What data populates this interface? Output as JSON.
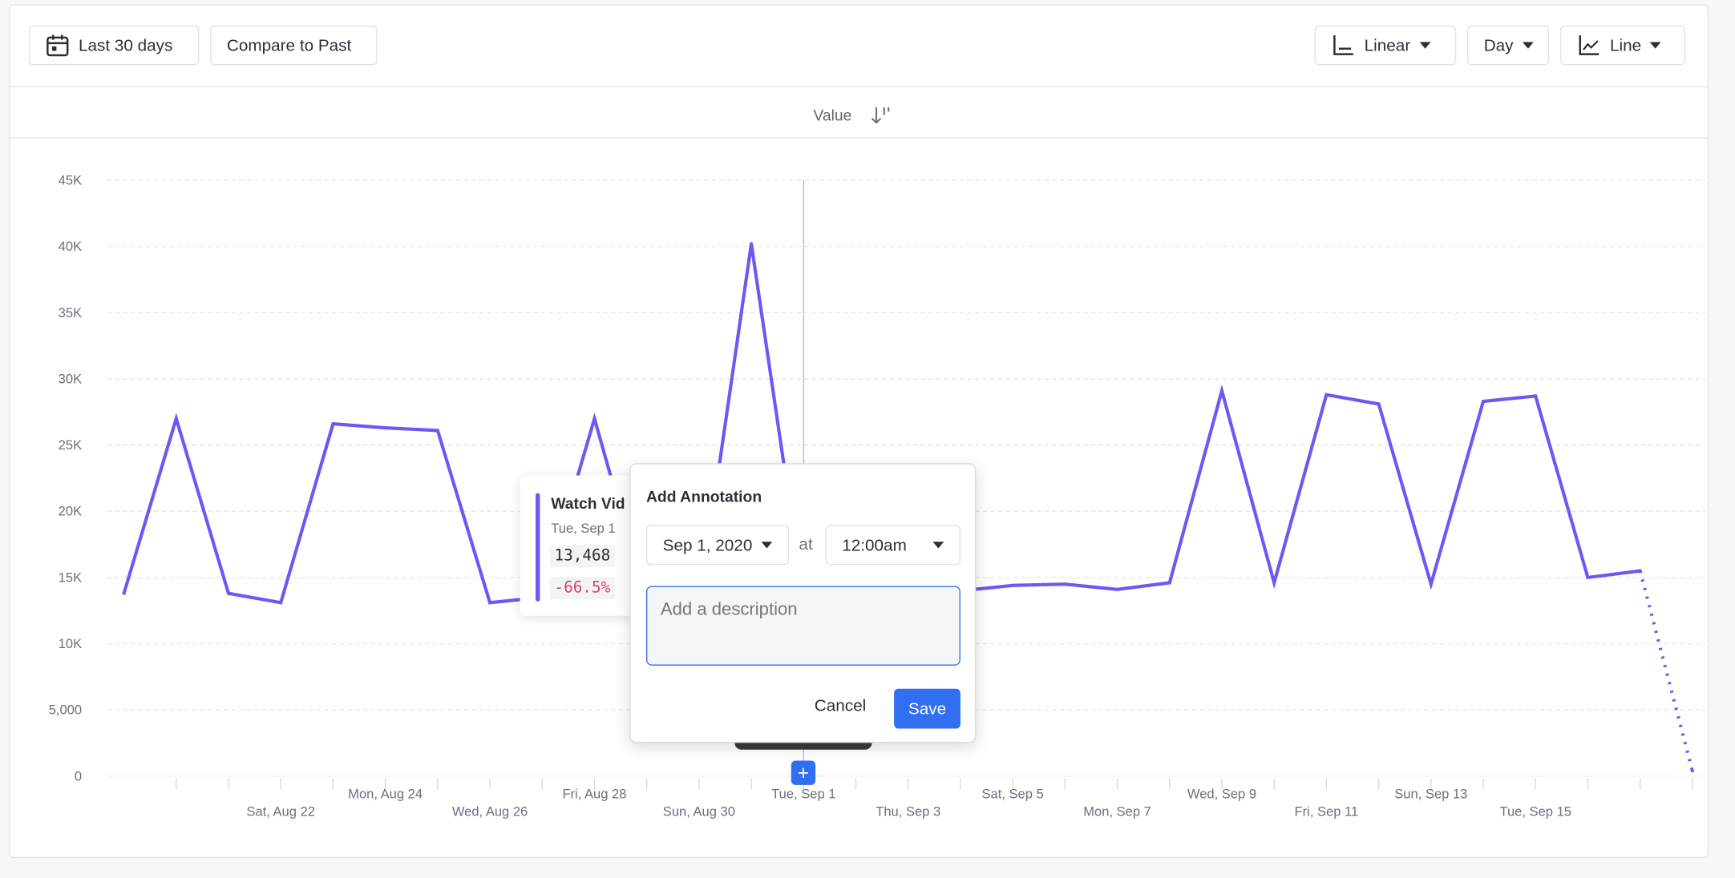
{
  "toolbar": {
    "date_range_label": "Last 30 days",
    "compare_label": "Compare to Past",
    "scale_label": "Linear",
    "interval_label": "Day",
    "chart_type_label": "Line"
  },
  "column_header": {
    "label": "Value"
  },
  "tooltip": {
    "title": "Watch Vid",
    "date": "Tue, Sep 1",
    "value": "13,468",
    "change": "-66.5%"
  },
  "annotation": {
    "title": "Add Annotation",
    "date": "Sep 1, 2020",
    "at_label": "at",
    "time": "12:00am",
    "description_placeholder": "Add a description",
    "cancel_label": "Cancel",
    "save_label": "Save",
    "add_icon": "plus-icon"
  },
  "colors": {
    "series": "#7155f5",
    "accent": "#306ef2",
    "negative": "#d8456b"
  },
  "chart_data": {
    "type": "line",
    "ylim": [
      0,
      45000
    ],
    "y_ticks": [
      "0",
      "5,000",
      "10K",
      "15K",
      "20K",
      "25K",
      "30K",
      "35K",
      "40K",
      "45K"
    ],
    "grid": true,
    "x": [
      "Aug 19",
      "Aug 20",
      "Aug 21",
      "Aug 22",
      "Aug 23",
      "Aug 24",
      "Aug 25",
      "Aug 26",
      "Aug 27",
      "Aug 28",
      "Aug 29",
      "Aug 30",
      "Aug 31",
      "Sep 1",
      "Sep 2",
      "Sep 3",
      "Sep 4",
      "Sep 5",
      "Sep 6",
      "Sep 7",
      "Sep 8",
      "Sep 9",
      "Sep 10",
      "Sep 11",
      "Sep 12",
      "Sep 13",
      "Sep 14",
      "Sep 15",
      "Sep 16",
      "Sep 17",
      "Sep 18"
    ],
    "values": [
      13800,
      27000,
      13800,
      13100,
      26600,
      26300,
      26100,
      13100,
      13500,
      27000,
      13000,
      12900,
      40200,
      13468,
      13800,
      13900,
      14000,
      14400,
      14500,
      14100,
      14600,
      29100,
      14600,
      28800,
      28100,
      14500,
      28300,
      28700,
      15000,
      15500,
      400
    ],
    "incomplete_last_point": true,
    "x_tick_labels": [
      {
        "date": "Sat, Aug 22",
        "row": 2
      },
      {
        "date": "Mon, Aug 24",
        "row": 1
      },
      {
        "date": "Wed, Aug 26",
        "row": 2
      },
      {
        "date": "Fri, Aug 28",
        "row": 1
      },
      {
        "date": "Sun, Aug 30",
        "row": 2
      },
      {
        "date": "Tue, Sep 1",
        "row": 1
      },
      {
        "date": "Thu, Sep 3",
        "row": 2
      },
      {
        "date": "Sat, Sep 5",
        "row": 1
      },
      {
        "date": "Mon, Sep 7",
        "row": 2
      },
      {
        "date": "Wed, Sep 9",
        "row": 1
      },
      {
        "date": "Fri, Sep 11",
        "row": 2
      },
      {
        "date": "Sun, Sep 13",
        "row": 1
      },
      {
        "date": "Tue, Sep 15",
        "row": 2
      }
    ],
    "hover_date": "Sep 1"
  }
}
